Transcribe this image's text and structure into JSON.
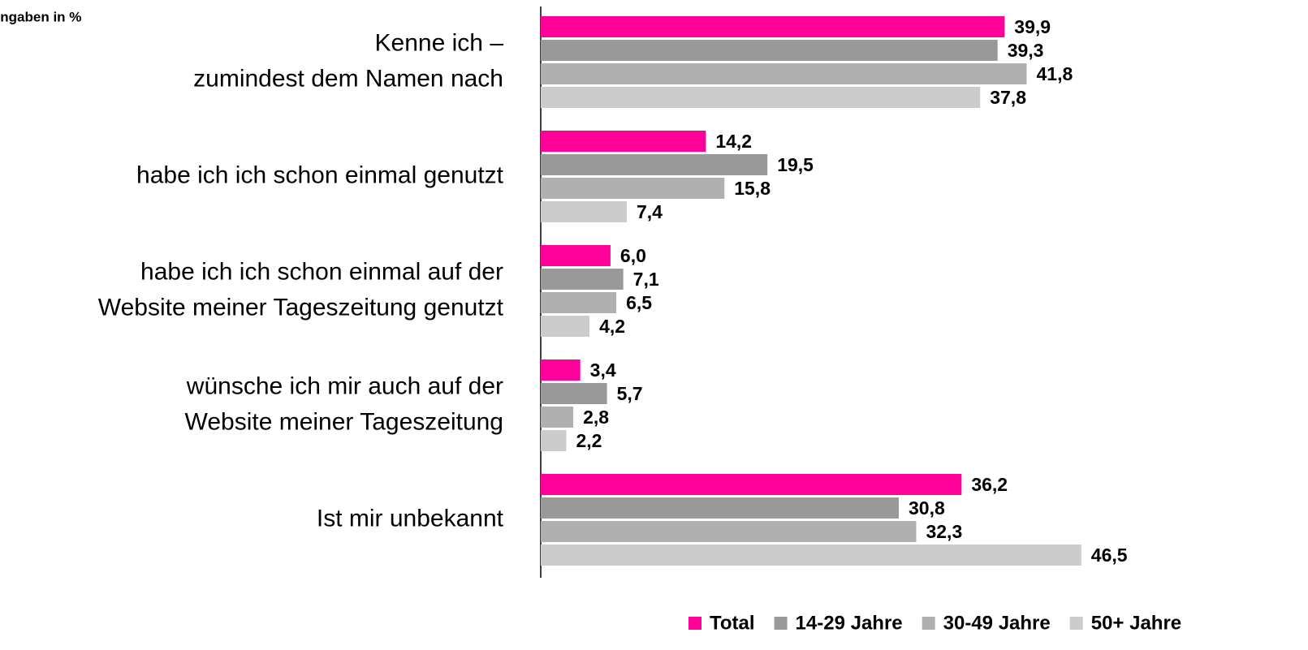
{
  "chart_data": {
    "type": "bar",
    "orientation": "horizontal",
    "title": "Angaben in %",
    "categories": [
      [
        "Kenne ich –",
        "zumindest dem Namen nach"
      ],
      [
        "habe ich ich schon einmal genutzt"
      ],
      [
        "habe ich ich schon einmal auf der",
        "Website meiner Tageszeitung genutzt"
      ],
      [
        "wünsche ich mir auch auf der",
        "Website meiner Tageszeitung"
      ],
      [
        "Ist mir unbekannt"
      ]
    ],
    "series": [
      {
        "name": "Total",
        "color": "#ff0099",
        "values": [
          39.9,
          14.2,
          6.0,
          3.4,
          36.2
        ],
        "value_labels": [
          "39,9",
          "14,2",
          "6,0",
          "3,4",
          "36,2"
        ]
      },
      {
        "name": "14-29 Jahre",
        "color": "#999999",
        "values": [
          39.3,
          19.5,
          7.1,
          5.7,
          30.8
        ],
        "value_labels": [
          "39,3",
          "19,5",
          "7,1",
          "5,7",
          "30,8"
        ]
      },
      {
        "name": "30-49 Jahre",
        "color": "#b0b0b0",
        "values": [
          41.8,
          15.8,
          6.5,
          2.8,
          32.3
        ],
        "value_labels": [
          "41,8",
          "15,8",
          "6,5",
          "2,8",
          "32,3"
        ]
      },
      {
        "name": "50+ Jahre",
        "color": "#cccccc",
        "values": [
          37.8,
          7.4,
          4.2,
          2.2,
          46.5
        ],
        "value_labels": [
          "37,8",
          "7,4",
          "4,2",
          "2,2",
          "46,5"
        ]
      }
    ],
    "xlim": [
      0,
      66
    ],
    "legend": "bottom"
  }
}
